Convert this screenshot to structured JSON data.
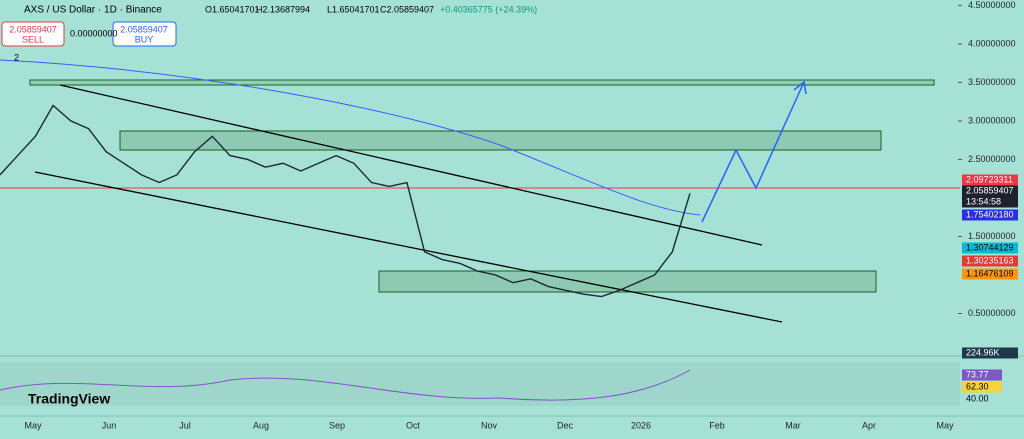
{
  "header": {
    "symbol": "AXS / US Dollar · 1D · Binance",
    "open": "O1.65041701",
    "high": "H2.13687994",
    "low": "L1.65041701",
    "close": "C2.05859407",
    "change": "+0.40365775 (+24.39%)"
  },
  "order_panel": {
    "sell_price": "2.05859407",
    "sell": "SELL",
    "buy_price": "2.05859407",
    "buy": "BUY",
    "spread": "0.00000000",
    "count": "2"
  },
  "chart_data": {
    "type": "line",
    "color": "#1a2a33",
    "values": [
      2.3,
      2.55,
      2.8,
      3.2,
      3.0,
      2.9,
      2.6,
      2.45,
      2.3,
      2.2,
      2.3,
      2.6,
      2.8,
      2.55,
      2.5,
      2.4,
      2.45,
      2.35,
      2.45,
      2.55,
      2.45,
      2.2,
      2.15,
      2.2,
      1.3,
      1.2,
      1.15,
      1.05,
      1.0,
      0.9,
      0.95,
      0.85,
      0.8,
      0.75,
      0.72,
      0.8,
      0.9,
      1.0,
      1.3,
      2.06
    ],
    "ylim": [
      0,
      4.57
    ],
    "yticks": [
      {
        "value": 4.5,
        "label": "4.50000000"
      },
      {
        "value": 4,
        "label": "4.00000000"
      },
      {
        "value": 3.5,
        "label": "3.50000000"
      },
      {
        "value": 3,
        "label": "3.00000000"
      },
      {
        "value": 2.5,
        "label": "2.50000000"
      },
      {
        "value": 1.5,
        "label": "1.50000000"
      },
      {
        "value": 0.5,
        "label": "0.50000000"
      }
    ],
    "months": [
      "May",
      "Jun",
      "Jul",
      "Aug",
      "Sep",
      "Oct",
      "Nov",
      "Dec",
      "2026",
      "Feb",
      "Mar",
      "Apr",
      "May"
    ]
  },
  "price_labels": [
    {
      "text": "2.09723311",
      "color": "#f23645"
    },
    {
      "text": "2.05859407",
      "color": "#1e222d"
    },
    {
      "text": "13:54:58",
      "color": "#1e222d"
    },
    {
      "text": "1.75402180",
      "color": "#2a2ee6"
    },
    {
      "text": "1.30744129",
      "color": "#00bcd4"
    },
    {
      "text": "1.30235163",
      "color": "#e53935"
    },
    {
      "text": "1.16476109",
      "color": "#ff9800"
    },
    {
      "text": "224.96K",
      "color": "#1e3a4a"
    }
  ],
  "rsi_labels": [
    {
      "text": "73.77",
      "color": "#7e57c2"
    },
    {
      "text": "62.30",
      "color": "#f5d33f"
    },
    {
      "text": "40.00",
      "color": "#a6e1d5"
    }
  ],
  "brand": "TradingView"
}
